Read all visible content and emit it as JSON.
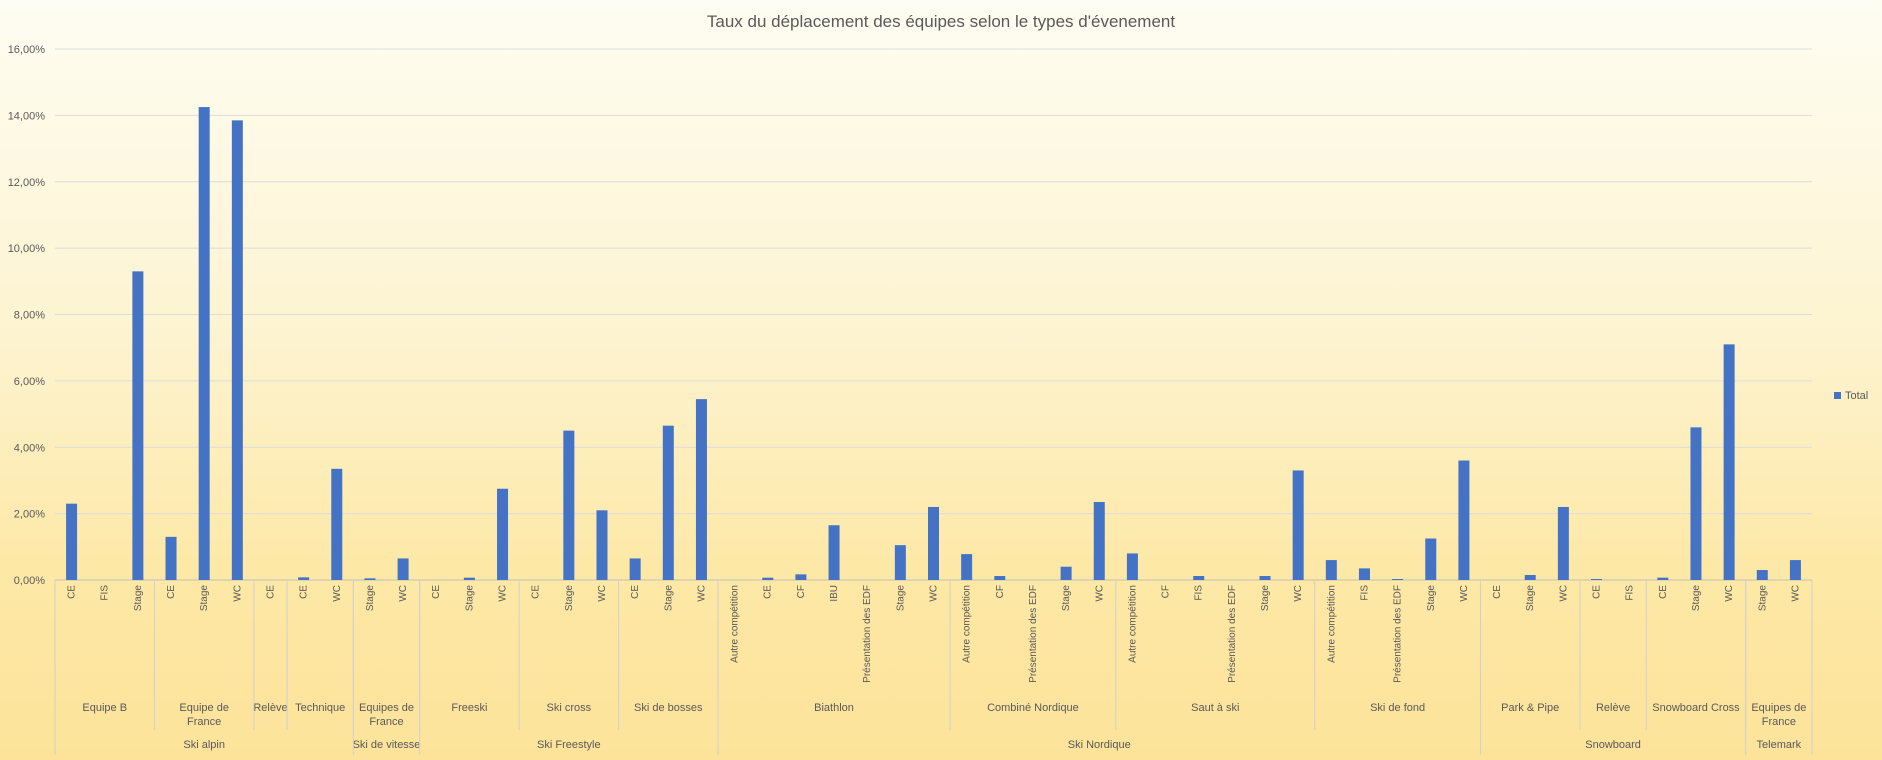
{
  "chart_data": {
    "type": "bar",
    "title": "Taux du déplacement des équipes selon le types d'évenement",
    "ylim": [
      0,
      16
    ],
    "yticks": [
      "0,00%",
      "2,00%",
      "4,00%",
      "6,00%",
      "8,00%",
      "10,00%",
      "12,00%",
      "14,00%",
      "16,00%"
    ],
    "ytick_values": [
      0,
      2,
      4,
      6,
      8,
      10,
      12,
      14,
      16
    ],
    "grid": true,
    "legend_position": "right",
    "series": [
      {
        "name": "Total",
        "color": "#4472c4",
        "values": [
          2.3,
          0,
          9.3,
          1.3,
          14.25,
          13.85,
          0,
          0.08,
          3.35,
          0.05,
          0.65,
          0,
          0.07,
          2.75,
          0,
          4.5,
          2.1,
          0.65,
          4.65,
          5.45,
          0,
          0.07,
          0.17,
          1.65,
          0,
          1.05,
          2.2,
          0.78,
          0.12,
          0,
          0.4,
          2.35,
          0.8,
          0,
          0.12,
          0,
          0.12,
          3.3,
          0.6,
          0.35,
          0.03,
          1.25,
          3.6,
          0,
          0.15,
          2.2,
          0.03,
          0,
          0.07,
          4.6,
          7.1,
          0.3,
          0.6
        ]
      }
    ],
    "categories": [
      "CE",
      "FIS",
      "Stage",
      "CE",
      "Stage",
      "WC",
      "CE",
      "CE",
      "WC",
      "Stage",
      "WC",
      "CE",
      "Stage",
      "WC",
      "CE",
      "Stage",
      "WC",
      "CE",
      "Stage",
      "WC",
      "Autre compétition",
      "CE",
      "CF",
      "IBU",
      "Présentation des EDF",
      "Stage",
      "WC",
      "Autre compétition",
      "CF",
      "Présentation des EDF",
      "Stage",
      "WC",
      "Autre compétition",
      "CF",
      "FIS",
      "Présentation des EDF",
      "Stage",
      "WC",
      "Autre compétition",
      "FIS",
      "Présentation des EDF",
      "Stage",
      "WC",
      "CE",
      "Stage",
      "WC",
      "CE",
      "FIS",
      "CE",
      "Stage",
      "WC",
      "Stage",
      "WC"
    ],
    "groups_level2": [
      {
        "label": "Equipe B",
        "start": 0,
        "count": 3
      },
      {
        "label": "Equipe de France",
        "start": 3,
        "count": 3
      },
      {
        "label": "Relève",
        "start": 6,
        "count": 1
      },
      {
        "label": "Technique",
        "start": 7,
        "count": 2
      },
      {
        "label": "Equipes de France",
        "start": 9,
        "count": 2
      },
      {
        "label": "Freeski",
        "start": 11,
        "count": 3
      },
      {
        "label": "Ski cross",
        "start": 14,
        "count": 3
      },
      {
        "label": "Ski de bosses",
        "start": 17,
        "count": 3
      },
      {
        "label": "Biathlon",
        "start": 20,
        "count": 7
      },
      {
        "label": "Combiné Nordique",
        "start": 27,
        "count": 5
      },
      {
        "label": "Saut à ski",
        "start": 32,
        "count": 6
      },
      {
        "label": "Ski de fond",
        "start": 38,
        "count": 5
      },
      {
        "label": "Park & Pipe",
        "start": 43,
        "count": 3
      },
      {
        "label": "Relève",
        "start": 46,
        "count": 2
      },
      {
        "label": "Snowboard Cross",
        "start": 48,
        "count": 3
      },
      {
        "label": "Equipes de France",
        "start": 51,
        "count": 2
      }
    ],
    "groups_level1": [
      {
        "label": "Ski alpin",
        "start": 0,
        "count": 9
      },
      {
        "label": "Ski de vitesse",
        "start": 9,
        "count": 2
      },
      {
        "label": "Ski Freestyle",
        "start": 11,
        "count": 9
      },
      {
        "label": "Ski Nordique",
        "start": 20,
        "count": 23
      },
      {
        "label": "Snowboard",
        "start": 43,
        "count": 8
      },
      {
        "label": "Telemark",
        "start": 51,
        "count": 2
      }
    ]
  }
}
